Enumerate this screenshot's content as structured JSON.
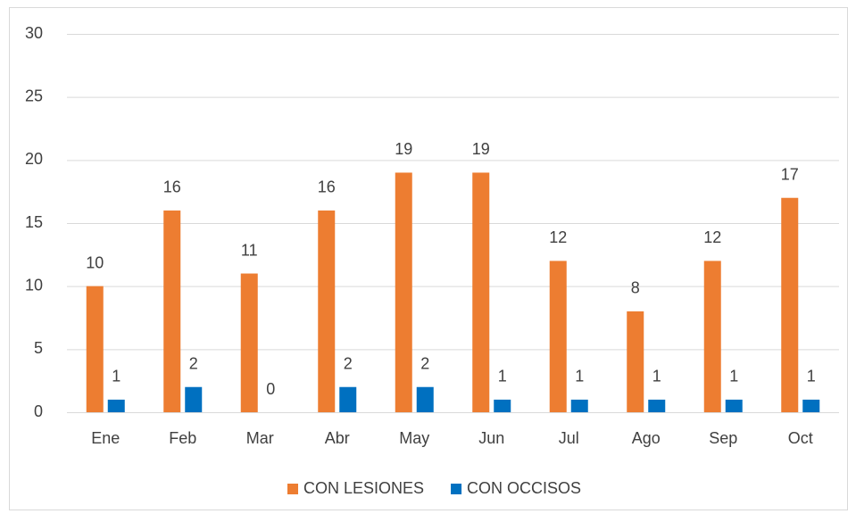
{
  "chart_data": {
    "type": "bar",
    "categories": [
      "Ene",
      "Feb",
      "Mar",
      "Abr",
      "May",
      "Jun",
      "Jul",
      "Ago",
      "Sep",
      "Oct"
    ],
    "series": [
      {
        "name": "CON LESIONES",
        "color": "#ed7d31",
        "values": [
          10,
          16,
          11,
          16,
          19,
          19,
          12,
          8,
          12,
          17
        ]
      },
      {
        "name": "CON OCCISOS",
        "color": "#0070c0",
        "values": [
          1,
          2,
          0,
          2,
          2,
          1,
          1,
          1,
          1,
          1
        ]
      }
    ],
    "ylim": [
      0,
      30
    ],
    "yticks": [
      0,
      5,
      10,
      15,
      20,
      25,
      30
    ],
    "grid": true,
    "legend": "bottom"
  }
}
